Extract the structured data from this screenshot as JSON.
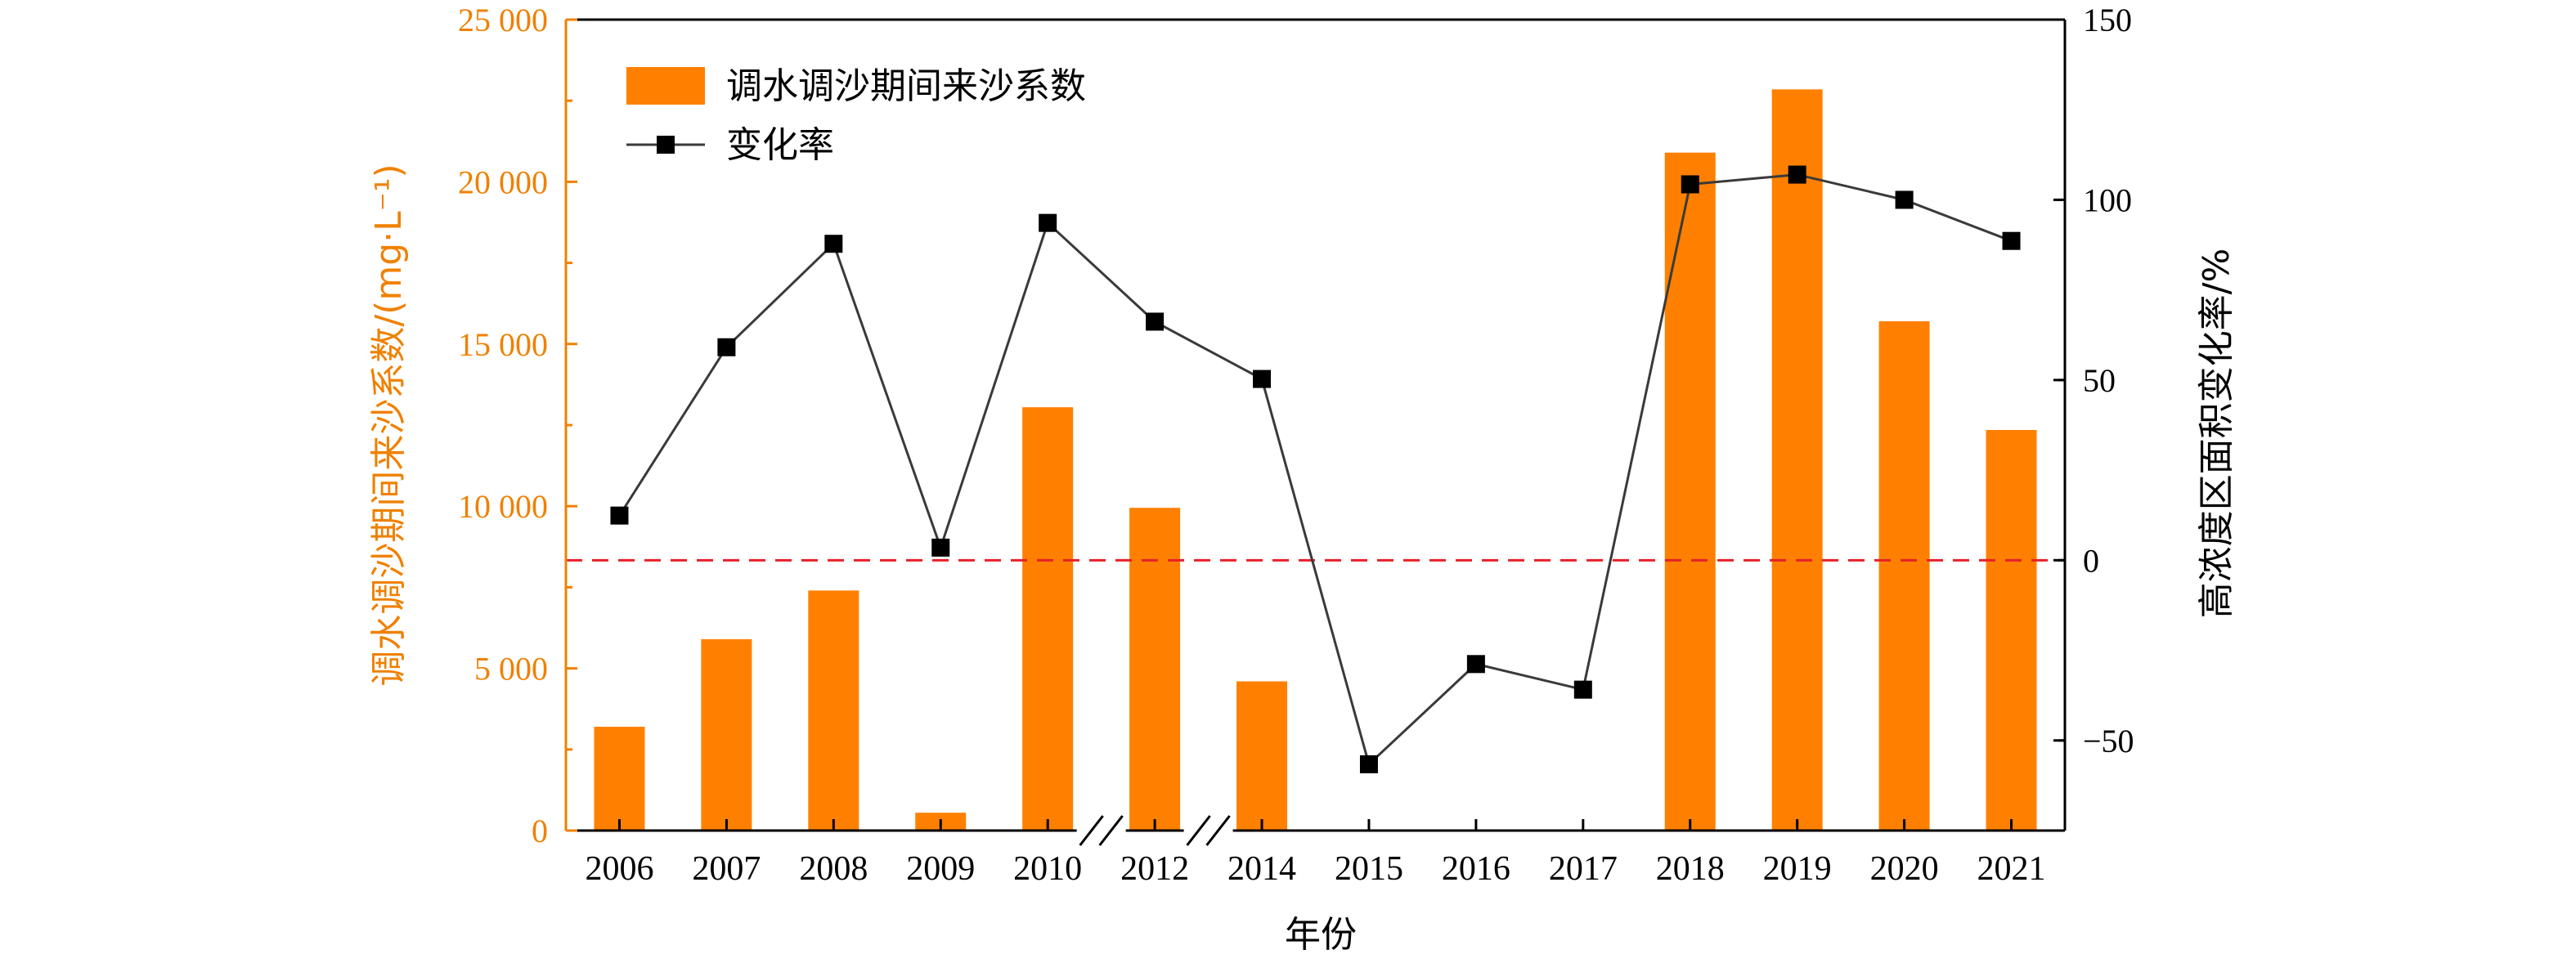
{
  "chart_data": {
    "type": "bar",
    "categories": [
      "2006",
      "2007",
      "2008",
      "2009",
      "2010",
      "2012",
      "2014",
      "2015",
      "2016",
      "2017",
      "2018",
      "2019",
      "2020",
      "2021"
    ],
    "series": [
      {
        "name": "调水调沙期间来沙系数",
        "axis": "left",
        "chart": "bar",
        "color": "#ff8000",
        "values": [
          3200,
          5900,
          7400,
          550,
          13050,
          9950,
          4600,
          null,
          null,
          null,
          20900,
          22850,
          15700,
          12350
        ]
      },
      {
        "name": "变化率",
        "axis": "right",
        "chart": "line",
        "color": "#000000",
        "values": [
          12.4,
          59.1,
          87.8,
          3.5,
          93.6,
          66.2,
          50.3,
          -56.6,
          -28.8,
          -35.9,
          104.3,
          107.0,
          100.0,
          88.6
        ]
      }
    ],
    "xlabel": "年份",
    "ylabel_left": "调水调沙期间来沙系数/(mg·L⁻¹)",
    "ylabel_right": "高浓度区面积变化率/%",
    "ylim_left": [
      0,
      25000
    ],
    "ylim_right": [
      -75,
      150
    ],
    "yticks_left": [
      "0",
      "5 000",
      "10 000",
      "15 000",
      "20 000",
      "25 000"
    ],
    "yticks_right": [
      "−50",
      "0",
      "50",
      "100",
      "150"
    ],
    "reference_line": {
      "axis": "right",
      "value": 0,
      "style": "dashed",
      "color": "#e8202a"
    },
    "axis_breaks_after": [
      "2010",
      "2012"
    ],
    "left_axis_color": "#f08000",
    "grid": false,
    "legend_position": "top-left"
  }
}
